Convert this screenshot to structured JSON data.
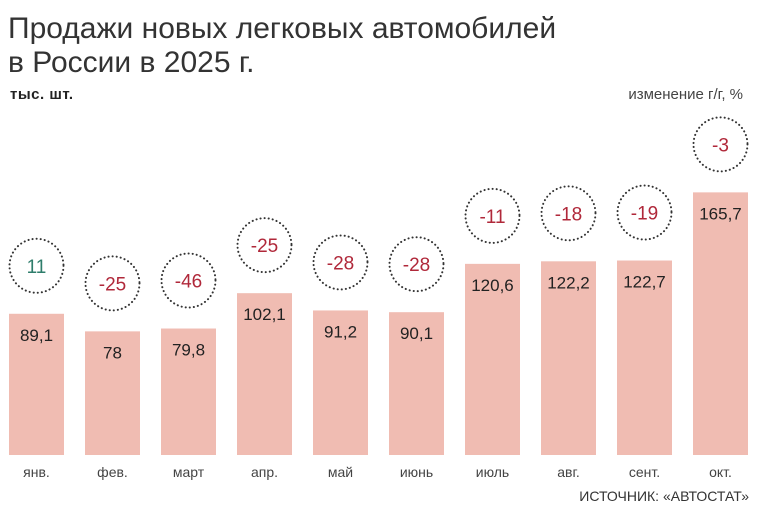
{
  "chart_data": {
    "type": "bar",
    "title": "Продажи новых легковых автомобилей в России в 2025 г.",
    "title_lines": [
      "Продажи новых легковых автомобилей",
      "в России в 2025 г."
    ],
    "ylabel": "тыс. шт.",
    "change_label": "изменение г/г, %",
    "categories": [
      "янв.",
      "фев.",
      "март",
      "апр.",
      "май",
      "июнь",
      "июль",
      "авг.",
      "сент.",
      "окт."
    ],
    "values": [
      89.1,
      78,
      79.8,
      102.1,
      91.2,
      90.1,
      120.6,
      122.2,
      122.7,
      165.7
    ],
    "value_labels": [
      "89,1",
      "78",
      "79,8",
      "102,1",
      "91,2",
      "90,1",
      "120,6",
      "122,2",
      "122,7",
      "165,7"
    ],
    "yoy_change": [
      11,
      -25,
      -46,
      -25,
      -28,
      -28,
      -11,
      -18,
      -19,
      -3
    ],
    "ylim": [
      0,
      170
    ],
    "grid": false,
    "source": "ИСТОЧНИК: «АВТОСТАТ»",
    "colors": {
      "bar": "#f0bcb2",
      "positive": "#2e7d6b",
      "negative": "#b0283a",
      "text": "#222222"
    }
  }
}
